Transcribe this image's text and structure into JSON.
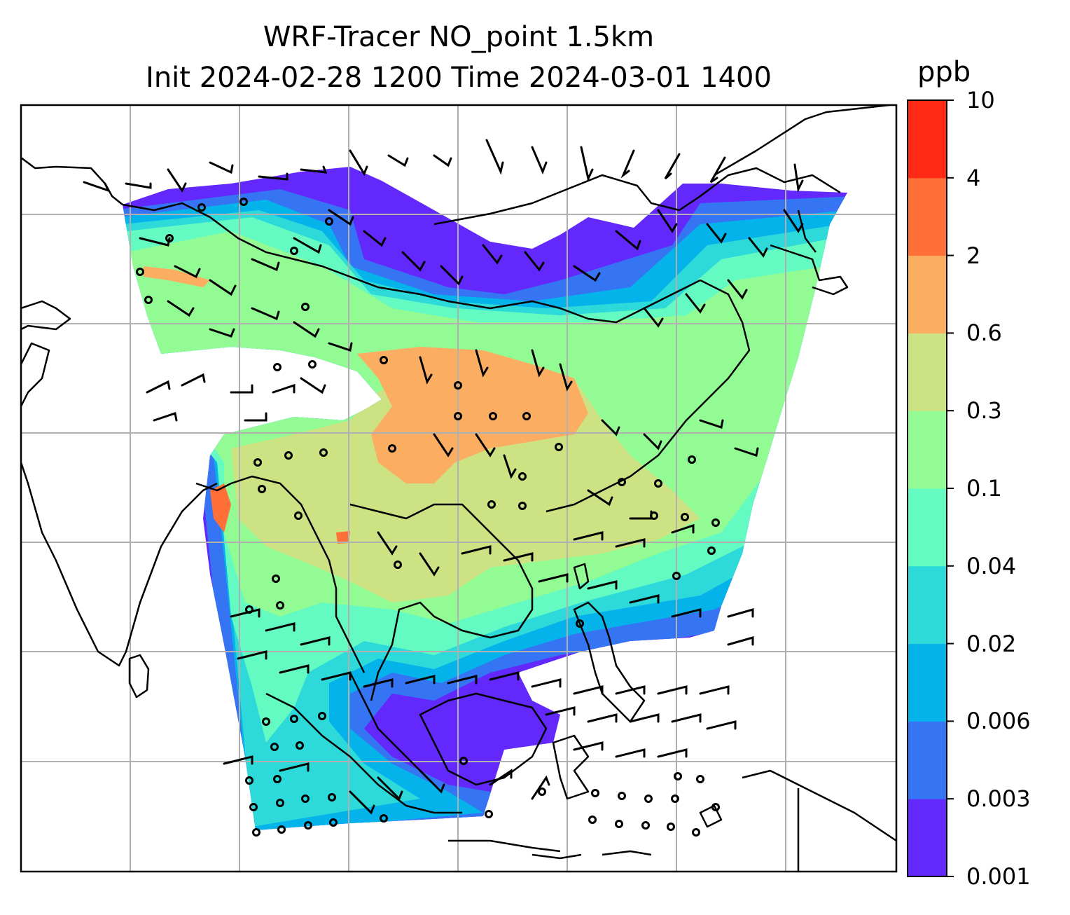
{
  "title_line1": "WRF-Tracer NO_point 1.5km",
  "title_line2": "Init 2024-02-28 1200 Time 2024-03-01 1400",
  "colorbar": {
    "unit": "ppb",
    "ticks": [
      "0.001",
      "0.003",
      "0.006",
      "0.02",
      "0.04",
      "0.1",
      "0.3",
      "0.6",
      "2",
      "4",
      "10"
    ],
    "colors": [
      "#6228fc",
      "#3575f4",
      "#04b3ea",
      "#2dd9d9",
      "#63fbc2",
      "#93fb93",
      "#cde283",
      "#fbae61",
      "#ff6f38",
      "#ff2916"
    ]
  },
  "map": {
    "colors": {
      "coastline": "#000000",
      "gridline": "#b0b0b0",
      "frame": "#000000"
    }
  }
}
